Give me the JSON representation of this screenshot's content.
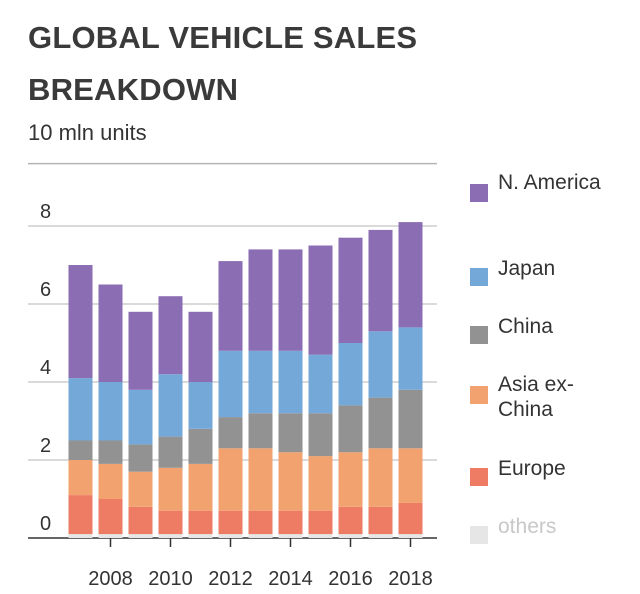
{
  "title": "GLOBAL VEHICLE SALES BREAKDOWN",
  "colors": {
    "N. America": "#8b6db3",
    "Japan": "#74a8d9",
    "China": "#929292",
    "Asia ex-China": "#f2a26e",
    "Europe": "#ee7b63",
    "others": "#e6e6e6"
  },
  "chart_data": {
    "type": "bar",
    "stacked": true,
    "title": "GLOBAL VEHICLE SALES BREAKDOWN",
    "ylabel": "10 mln units",
    "xlabel": "",
    "ylim": [
      0,
      9.6
    ],
    "yticks": [
      "0",
      "2",
      "4",
      "6",
      "8"
    ],
    "xticks": [
      "2008",
      "2010",
      "2012",
      "2014",
      "2016",
      "2018"
    ],
    "grid": true,
    "legend": "right",
    "categories": [
      "2007",
      "2008",
      "2009",
      "2010",
      "2011",
      "2012",
      "2013",
      "2014",
      "2015",
      "2016",
      "2017",
      "2018"
    ],
    "series": [
      {
        "name": "others",
        "values": [
          0.1,
          0.1,
          0.1,
          0.1,
          0.1,
          0.1,
          0.1,
          0.1,
          0.1,
          0.1,
          0.1,
          0.1
        ]
      },
      {
        "name": "Europe",
        "values": [
          1.0,
          0.9,
          0.7,
          0.6,
          0.6,
          0.6,
          0.6,
          0.6,
          0.6,
          0.7,
          0.7,
          0.8
        ]
      },
      {
        "name": "Asia ex-China",
        "values": [
          0.9,
          0.9,
          0.9,
          1.1,
          1.2,
          1.6,
          1.6,
          1.5,
          1.4,
          1.4,
          1.5,
          1.4
        ]
      },
      {
        "name": "China",
        "values": [
          0.5,
          0.6,
          0.7,
          0.8,
          0.9,
          0.8,
          0.9,
          1.0,
          1.1,
          1.2,
          1.3,
          1.5
        ]
      },
      {
        "name": "Japan",
        "values": [
          1.6,
          1.5,
          1.4,
          1.6,
          1.2,
          1.7,
          1.6,
          1.6,
          1.5,
          1.6,
          1.7,
          1.6
        ]
      },
      {
        "name": "N. America",
        "values": [
          2.9,
          2.5,
          2.0,
          2.0,
          1.8,
          2.3,
          2.6,
          2.6,
          2.8,
          2.7,
          2.6,
          2.7
        ]
      }
    ]
  },
  "legend_items": [
    {
      "label": "N. America"
    },
    {
      "label": "Japan"
    },
    {
      "label": "China"
    },
    {
      "label": "Asia ex-China"
    },
    {
      "label": "Europe"
    },
    {
      "label": "others"
    }
  ]
}
